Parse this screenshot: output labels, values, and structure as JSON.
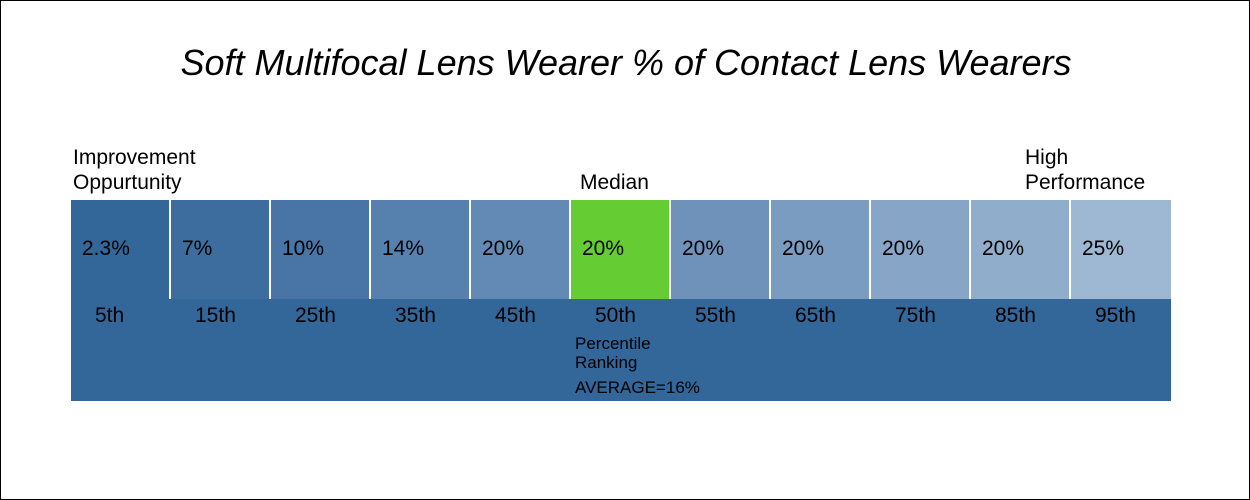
{
  "chart_data": {
    "type": "table",
    "title": "Soft Multifocal Lens Wearer % of Contact Lens Wearers",
    "left_label_line1": "Improvement",
    "left_label_line2": "Oppurtunity",
    "median_label": "Median",
    "right_label_line1": "High",
    "right_label_line2": "Performance",
    "percentiles": [
      "5th",
      "15th",
      "25th",
      "35th",
      "45th",
      "50th",
      "55th",
      "65th",
      "75th",
      "85th",
      "95th"
    ],
    "values": [
      "2.3%",
      "7%",
      "10%",
      "14%",
      "20%",
      "20%",
      "20%",
      "20%",
      "20%",
      "20%",
      "25%"
    ],
    "cell_colors": [
      "#336699",
      "#3d6c9e",
      "#4975a6",
      "#5680ad",
      "#6389b5",
      "#66cc33",
      "#6f92ba",
      "#7b9cc1",
      "#86a5c7",
      "#91adcc",
      "#9eb8d3"
    ],
    "highlight_index": 5,
    "highlight_color": "#66cc33",
    "band_color": "#336699",
    "xlabel_line1": "Percentile",
    "xlabel_line2": "Ranking",
    "average_label": "AVERAGE=16%"
  }
}
